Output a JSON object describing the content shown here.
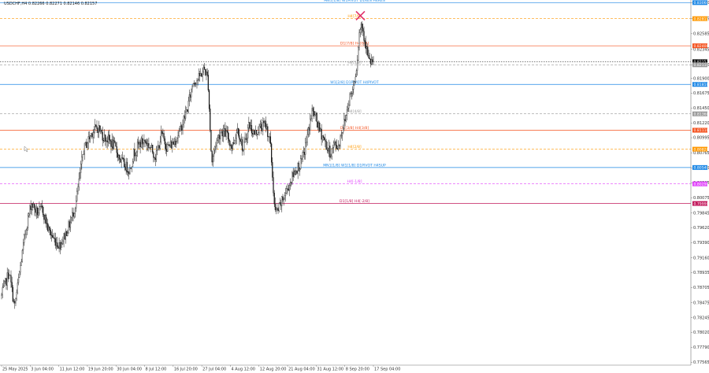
{
  "header": {
    "symbol_info": "USDCHF,H4  0.82266 0.82271 0.82146 0.82157"
  },
  "colors": {
    "candle": "#111111",
    "axis": "#777777",
    "marker": "#e0306a"
  },
  "chart_data": {
    "type": "candlestick",
    "y_ticks": [
      "0.83060",
      "0.82815",
      "0.82585",
      "0.82345",
      "0.82110",
      "0.81900",
      "0.81675",
      "0.81450",
      "0.81220",
      "0.80995",
      "0.80765",
      "0.80535",
      "0.80305",
      "0.80075",
      "0.79845",
      "0.79620",
      "0.79390",
      "0.79160",
      "0.78935",
      "0.78705",
      "0.78475",
      "0.78245",
      "0.78020",
      "0.77790",
      "0.77565"
    ],
    "y_range": [
      0.7752,
      0.831
    ],
    "x_ticks": [
      "25 May 2025",
      "3 Jun 04:00",
      "11 Jun 12:00",
      "19 Jun 20:00",
      "30 Jun 04:00",
      "8 Jul 12:00",
      "16 Jul 20:00",
      "27 Jul 04:00",
      "4 Aug 12:00",
      "12 Aug 20:00",
      "21 Aug 04:00",
      "31 Aug 12:00",
      "8 Sep 20:00",
      "17 Sep 04:00"
    ],
    "levels": [
      {
        "label": "MN1[1/8] W1PIVOT D1RES H4RES",
        "price": 0.8306,
        "color": "#1e88e5",
        "dashed": false,
        "tag": "0.83060"
      },
      {
        "label": "H4[7/8]",
        "price": 0.82815,
        "color": "#ff9800",
        "dashed": true,
        "tag": "0.82815"
      },
      {
        "label": "D1[7/8] H4[6/8]",
        "price": 0.824,
        "color": "#f4511e",
        "dashed": false,
        "tag": "0.82400"
      },
      {
        "label": "",
        "price": 0.82157,
        "color": "#000000",
        "dashed": false,
        "tag": "0.82157"
      },
      {
        "label": "H4[5/8]",
        "price": 0.8211,
        "color": "#999999",
        "dashed": true,
        "tag": "0.82110"
      },
      {
        "label": "W1[2/8] D1PIVOT H4PIVOT",
        "price": 0.8181,
        "color": "#1e88e5",
        "dashed": false,
        "tag": "0.81810"
      },
      {
        "label": "H4[4/8]",
        "price": 0.8136,
        "color": "#999999",
        "dashed": true,
        "tag": "0.81360"
      },
      {
        "label": "D1[3/8] H4[3/8]",
        "price": 0.8111,
        "color": "#f4511e",
        "dashed": false,
        "tag": "0.81110"
      },
      {
        "label": "H4[2/8]",
        "price": 0.8082,
        "color": "#ff9800",
        "dashed": true,
        "tag": "0.80820"
      },
      {
        "label": "MN1[1/8] W1[1/8] D1PIVOT H4SUP",
        "price": 0.8054,
        "color": "#1e88e5",
        "dashed": false,
        "tag": "0.80540"
      },
      {
        "label": "H4[-1/8]",
        "price": 0.8029,
        "color": "#e040fb",
        "dashed": true,
        "tag": "0.80290"
      },
      {
        "label": "D1[1/8] H4[-2/8]",
        "price": 0.7999,
        "color": "#c2185b",
        "dashed": false,
        "tag": "0.79990"
      }
    ],
    "cross_marker": {
      "price": 0.8286,
      "index": 0.965
    },
    "path": [
      [
        0.0,
        0.7858
      ],
      [
        0.02,
        0.7895
      ],
      [
        0.035,
        0.784
      ],
      [
        0.05,
        0.79
      ],
      [
        0.065,
        0.796
      ],
      [
        0.08,
        0.8
      ],
      [
        0.095,
        0.7985
      ],
      [
        0.11,
        0.799
      ],
      [
        0.125,
        0.796
      ],
      [
        0.14,
        0.7945
      ],
      [
        0.155,
        0.7935
      ],
      [
        0.17,
        0.795
      ],
      [
        0.185,
        0.797
      ],
      [
        0.2,
        0.8
      ],
      [
        0.21,
        0.804
      ],
      [
        0.22,
        0.808
      ],
      [
        0.232,
        0.8095
      ],
      [
        0.245,
        0.811
      ],
      [
        0.26,
        0.8115
      ],
      [
        0.275,
        0.81
      ],
      [
        0.29,
        0.8095
      ],
      [
        0.305,
        0.8085
      ],
      [
        0.32,
        0.8065
      ],
      [
        0.335,
        0.8055
      ],
      [
        0.345,
        0.805
      ],
      [
        0.355,
        0.8075
      ],
      [
        0.37,
        0.809
      ],
      [
        0.385,
        0.8095
      ],
      [
        0.4,
        0.8085
      ],
      [
        0.415,
        0.807
      ],
      [
        0.43,
        0.8105
      ],
      [
        0.445,
        0.8085
      ],
      [
        0.46,
        0.809
      ],
      [
        0.48,
        0.811
      ],
      [
        0.5,
        0.8145
      ],
      [
        0.515,
        0.8185
      ],
      [
        0.53,
        0.819
      ],
      [
        0.545,
        0.8205
      ],
      [
        0.555,
        0.819
      ],
      [
        0.565,
        0.806
      ],
      [
        0.575,
        0.809
      ],
      [
        0.59,
        0.811
      ],
      [
        0.605,
        0.8105
      ],
      [
        0.62,
        0.8085
      ],
      [
        0.635,
        0.8115
      ],
      [
        0.65,
        0.808
      ],
      [
        0.665,
        0.812
      ],
      [
        0.68,
        0.8105
      ],
      [
        0.695,
        0.8115
      ],
      [
        0.71,
        0.812
      ],
      [
        0.722,
        0.8095
      ],
      [
        0.728,
        0.8045
      ],
      [
        0.735,
        0.7985
      ],
      [
        0.745,
        0.799
      ],
      [
        0.76,
        0.801
      ],
      [
        0.775,
        0.803
      ],
      [
        0.79,
        0.805
      ],
      [
        0.805,
        0.806
      ],
      [
        0.815,
        0.808
      ],
      [
        0.825,
        0.811
      ],
      [
        0.835,
        0.814
      ],
      [
        0.845,
        0.813
      ],
      [
        0.855,
        0.811
      ],
      [
        0.865,
        0.81
      ],
      [
        0.875,
        0.8085
      ],
      [
        0.885,
        0.8075
      ],
      [
        0.895,
        0.809
      ],
      [
        0.905,
        0.8085
      ],
      [
        0.915,
        0.811
      ],
      [
        0.925,
        0.813
      ],
      [
        0.935,
        0.816
      ],
      [
        0.945,
        0.8175
      ],
      [
        0.955,
        0.821
      ],
      [
        0.962,
        0.826
      ],
      [
        0.968,
        0.8275
      ],
      [
        0.975,
        0.8255
      ],
      [
        0.982,
        0.8235
      ],
      [
        0.988,
        0.8215
      ],
      [
        1.0,
        0.8216
      ]
    ]
  }
}
